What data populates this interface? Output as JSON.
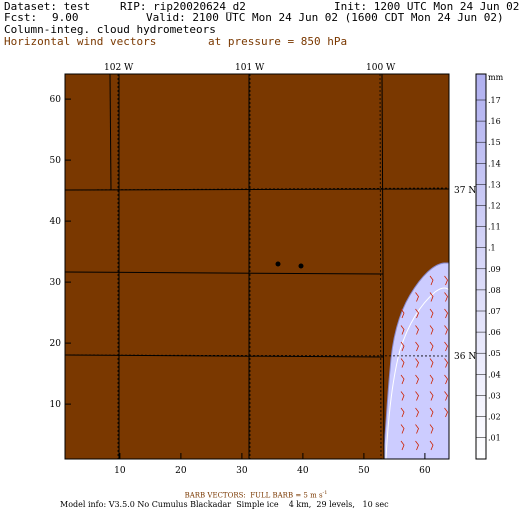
{
  "header": {
    "dataset": "Dataset: test",
    "rip": "RIP: rip20020624_d2",
    "init": "Init: 1200 UTC Mon 24 Jun 02",
    "fcst_label": "Fcst:",
    "fcst_value": "9.00",
    "valid": "Valid: 2100 UTC Mon 24 Jun 02 (1600 CDT Mon 24 Jun 02)",
    "field1": "Column-integ. cloud hydrometeors",
    "field2": "Horizontal wind vectors",
    "pressure": "at pressure = 850 hPa"
  },
  "map": {
    "x_ticks": [
      "10",
      "20",
      "30",
      "40",
      "50",
      "60"
    ],
    "y_ticks": [
      "10",
      "20",
      "30",
      "40",
      "50",
      "60"
    ],
    "lon_labels": [
      "102 W",
      "101 W",
      "100 W"
    ],
    "lat_labels": [
      "37 N",
      "36 N"
    ],
    "colors": {
      "land": "#7a3800",
      "cloud": "#ccccff",
      "barb": "#cc2200"
    }
  },
  "colorbar": {
    "unit": "mm",
    "labels": [
      ".17",
      ".16",
      ".15",
      ".14",
      ".13",
      ".12",
      ".11",
      ".1",
      ".09",
      ".08",
      ".07",
      ".06",
      ".05",
      ".04",
      ".03",
      ".02",
      ".01"
    ],
    "colors": {
      "max": "#b0b0f0",
      "min": "#ffffff"
    }
  },
  "footer": {
    "barb_text": "BARB VECTORS:  FULL BARB = 5 m s",
    "barb_exp": "-1",
    "model_info": "Model info: V3.5.0 No Cumulus Blackadar  Simple ice    4 km,  29 levels,   10 sec"
  }
}
